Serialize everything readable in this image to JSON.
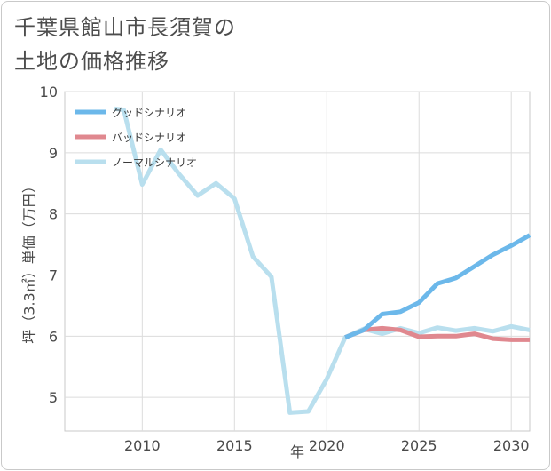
{
  "title": {
    "line1": "千葉県館山市長須賀の",
    "line2": "土地の価格推移"
  },
  "chart_data": {
    "type": "line",
    "xlabel": "年",
    "ylabel": "坪（3.3㎡）単価（万円）",
    "xlim": [
      2005.8,
      2031
    ],
    "ylim": [
      4.45,
      10
    ],
    "xticks": [
      2010,
      2015,
      2020,
      2025,
      2030
    ],
    "yticks": [
      5,
      6,
      7,
      8,
      9,
      10
    ],
    "grid": true,
    "legend_position": "top-left",
    "series": [
      {
        "name": "グッドシナリオ",
        "color": "#6cb8ea",
        "x": [
          2021,
          2022,
          2023,
          2024,
          2025,
          2026,
          2027,
          2028,
          2029,
          2030,
          2031
        ],
        "y": [
          5.98,
          6.1,
          6.36,
          6.4,
          6.55,
          6.86,
          6.95,
          7.14,
          7.33,
          7.48,
          7.65
        ]
      },
      {
        "name": "バッドシナリオ",
        "color": "#e0888f",
        "x": [
          2021,
          2022,
          2023,
          2024,
          2025,
          2026,
          2027,
          2028,
          2029,
          2030,
          2031
        ],
        "y": [
          5.98,
          6.1,
          6.13,
          6.1,
          5.99,
          6.0,
          6.0,
          6.04,
          5.96,
          5.94,
          5.94
        ]
      },
      {
        "name": "ノーマルシナリオ",
        "color": "#b9dfee",
        "x": [
          2008.5,
          2009,
          2010,
          2011,
          2012,
          2013,
          2014,
          2015,
          2016,
          2017,
          2018,
          2019,
          2020,
          2021,
          2022,
          2023,
          2024,
          2025,
          2026,
          2027,
          2028,
          2029,
          2030,
          2031
        ],
        "y": [
          9.72,
          9.7,
          8.48,
          9.05,
          8.65,
          8.3,
          8.5,
          8.25,
          7.3,
          6.97,
          4.75,
          4.77,
          5.3,
          5.98,
          6.12,
          6.04,
          6.13,
          6.05,
          6.14,
          6.09,
          6.13,
          6.08,
          6.16,
          6.1
        ]
      }
    ]
  }
}
